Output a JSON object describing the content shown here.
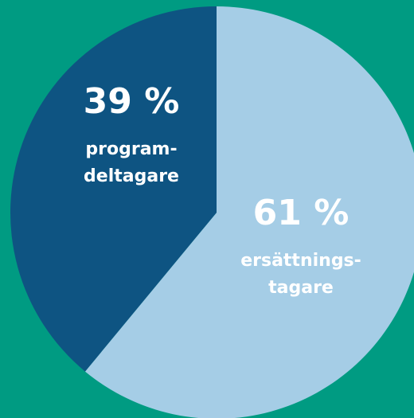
{
  "chart_data": {
    "type": "pie",
    "categories": [
      "ersättnings-\ntagare",
      "program-\ndeltagare"
    ],
    "values": [
      61,
      39
    ],
    "value_labels": [
      "61 %",
      "39 %"
    ],
    "colors": [
      "#a5cde6",
      "#0e5482"
    ]
  }
}
